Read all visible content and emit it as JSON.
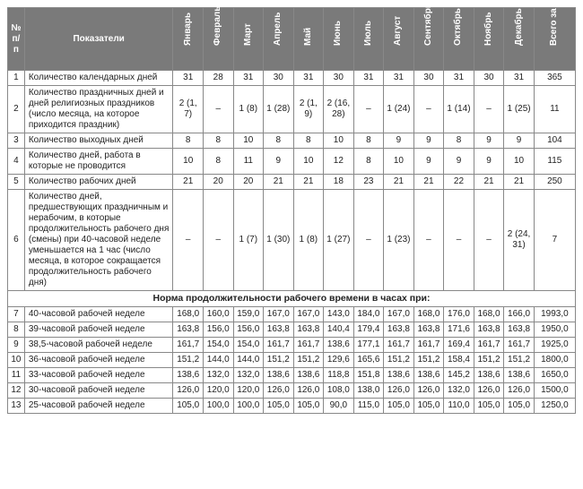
{
  "header": {
    "num": "№ п/п",
    "indicator": "Показатели",
    "months": [
      "Январь",
      "Февраль",
      "Март",
      "Апрель",
      "Май",
      "Июнь",
      "Июль",
      "Август",
      "Сентябрь",
      "Октябрь",
      "Ноябрь",
      "Декабрь"
    ],
    "total": "Всего за 2019 год"
  },
  "rows": [
    {
      "n": "1",
      "label": "Количество календарных дней",
      "v": [
        "31",
        "28",
        "31",
        "30",
        "31",
        "30",
        "31",
        "31",
        "30",
        "31",
        "30",
        "31"
      ],
      "t": "365"
    },
    {
      "n": "2",
      "label": "Количество праздничных дней и дней религиозных праздников (число месяца, на которое приходится праздник)",
      "v": [
        "2 (1, 7)",
        "–",
        "1 (8)",
        "1 (28)",
        "2 (1, 9)",
        "2 (16, 28)",
        "–",
        "1 (24)",
        "–",
        "1 (14)",
        "–",
        "1 (25)"
      ],
      "t": "11"
    },
    {
      "n": "3",
      "label": "Количество выходных дней",
      "v": [
        "8",
        "8",
        "10",
        "8",
        "8",
        "10",
        "8",
        "9",
        "9",
        "8",
        "9",
        "9"
      ],
      "t": "104"
    },
    {
      "n": "4",
      "label": "Количество дней, работа в которые не проводится",
      "v": [
        "10",
        "8",
        "11",
        "9",
        "10",
        "12",
        "8",
        "10",
        "9",
        "9",
        "9",
        "10"
      ],
      "t": "115"
    },
    {
      "n": "5",
      "label": "Количество рабочих дней",
      "v": [
        "21",
        "20",
        "20",
        "21",
        "21",
        "18",
        "23",
        "21",
        "21",
        "22",
        "21",
        "21"
      ],
      "t": "250"
    },
    {
      "n": "6",
      "label": "Количество дней, предшествующих праздничным и нерабочим, в которые продолжительность рабочего дня (смены) при 40-часовой неделе уменьшается на 1 час (число месяца, в которое сокращается продолжительность рабочего дня)",
      "v": [
        "–",
        "–",
        "1 (7)",
        "1 (30)",
        "1 (8)",
        "1 (27)",
        "–",
        "1 (23)",
        "–",
        "–",
        "–",
        "2 (24, 31)"
      ],
      "t": "7"
    }
  ],
  "section_title": "Норма продолжительности рабочего времени в часах при:",
  "norm_rows": [
    {
      "n": "7",
      "label": "40-часовой рабочей неделе",
      "v": [
        "168,0",
        "160,0",
        "159,0",
        "167,0",
        "167,0",
        "143,0",
        "184,0",
        "167,0",
        "168,0",
        "176,0",
        "168,0",
        "166,0"
      ],
      "t": "1993,0"
    },
    {
      "n": "8",
      "label": "39-часовой рабочей неделе",
      "v": [
        "163,8",
        "156,0",
        "156,0",
        "163,8",
        "163,8",
        "140,4",
        "179,4",
        "163,8",
        "163,8",
        "171,6",
        "163,8",
        "163,8"
      ],
      "t": "1950,0"
    },
    {
      "n": "9",
      "label": "38,5-часовой рабочей неделе",
      "v": [
        "161,7",
        "154,0",
        "154,0",
        "161,7",
        "161,7",
        "138,6",
        "177,1",
        "161,7",
        "161,7",
        "169,4",
        "161,7",
        "161,7"
      ],
      "t": "1925,0"
    },
    {
      "n": "10",
      "label": "36-часовой рабочей неделе",
      "v": [
        "151,2",
        "144,0",
        "144,0",
        "151,2",
        "151,2",
        "129,6",
        "165,6",
        "151,2",
        "151,2",
        "158,4",
        "151,2",
        "151,2"
      ],
      "t": "1800,0"
    },
    {
      "n": "11",
      "label": "33-часовой рабочей неделе",
      "v": [
        "138,6",
        "132,0",
        "132,0",
        "138,6",
        "138,6",
        "118,8",
        "151,8",
        "138,6",
        "138,6",
        "145,2",
        "138,6",
        "138,6"
      ],
      "t": "1650,0"
    },
    {
      "n": "12",
      "label": "30-часовой рабочей неделе",
      "v": [
        "126,0",
        "120,0",
        "120,0",
        "126,0",
        "126,0",
        "108,0",
        "138,0",
        "126,0",
        "126,0",
        "132,0",
        "126,0",
        "126,0"
      ],
      "t": "1500,0"
    },
    {
      "n": "13",
      "label": "25-часовой рабочей неделе",
      "v": [
        "105,0",
        "100,0",
        "100,0",
        "105,0",
        "105,0",
        "90,0",
        "115,0",
        "105,0",
        "105,0",
        "110,0",
        "105,0",
        "105,0"
      ],
      "t": "1250,0"
    }
  ],
  "style": {
    "header_bg": "#7a7a7a",
    "header_fg": "#ffffff",
    "border_color": "#888888",
    "font_size_body": 10,
    "font_size_section": 10.5
  }
}
